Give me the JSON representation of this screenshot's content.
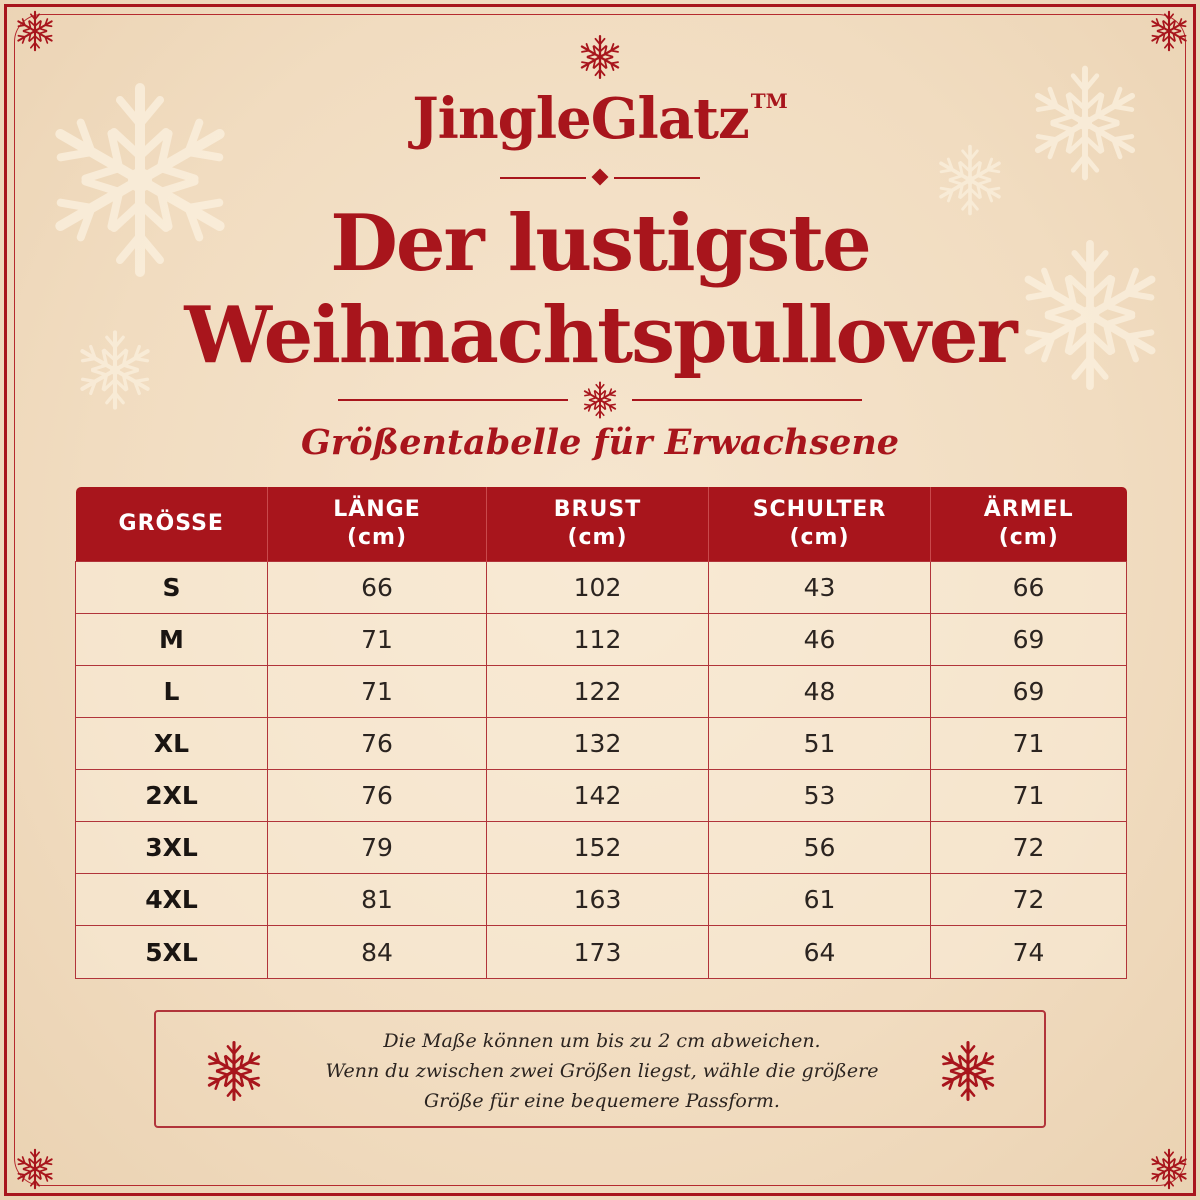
{
  "brand": {
    "name": "JingleGlatz",
    "trademark": "TM"
  },
  "title": {
    "line1": "Der lustigste",
    "line2": "Weihnachtspullover"
  },
  "subtitle": "Größentabelle für Erwachsene",
  "table": {
    "headers": [
      {
        "label": "GRÖSSE",
        "unit": ""
      },
      {
        "label": "LÄNGE",
        "unit": "(cm)"
      },
      {
        "label": "BRUST",
        "unit": "(cm)"
      },
      {
        "label": "SCHULTER",
        "unit": "(cm)"
      },
      {
        "label": "ÄRMEL",
        "unit": "(cm)"
      }
    ],
    "rows": [
      [
        "S",
        "66",
        "102",
        "43",
        "66"
      ],
      [
        "M",
        "71",
        "112",
        "46",
        "69"
      ],
      [
        "L",
        "71",
        "122",
        "48",
        "69"
      ],
      [
        "XL",
        "76",
        "132",
        "51",
        "71"
      ],
      [
        "2XL",
        "76",
        "142",
        "53",
        "71"
      ],
      [
        "3XL",
        "79",
        "152",
        "56",
        "72"
      ],
      [
        "4XL",
        "81",
        "163",
        "61",
        "72"
      ],
      [
        "5XL",
        "84",
        "173",
        "64",
        "74"
      ]
    ]
  },
  "note": {
    "lines": [
      "Die Maße können um bis zu 2 cm abweichen.",
      "Wenn du zwischen zwei Größen liegst, wähle die größere",
      "Größe für eine bequemere Passform."
    ]
  },
  "colors": {
    "accent": "#a8151c",
    "background": "#f3e0c5",
    "text": "#2b2420"
  },
  "icons": [
    "snowflake-icon"
  ]
}
